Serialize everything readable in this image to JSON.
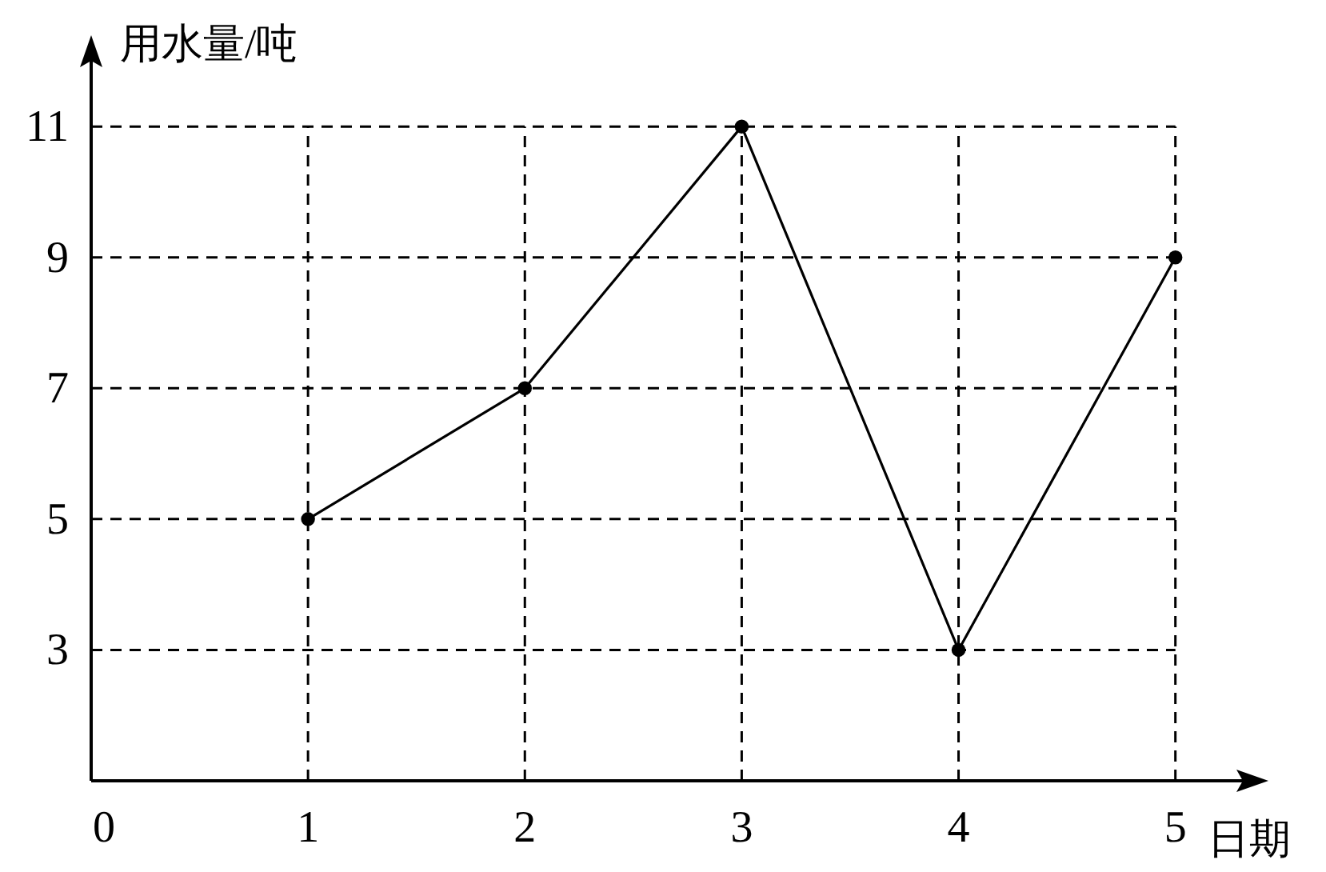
{
  "chart_data": {
    "type": "line",
    "xlabel": "日期",
    "ylabel": "用水量/吨",
    "x": [
      1,
      2,
      3,
      4,
      5
    ],
    "series": [
      {
        "color": "#000000",
        "values": [
          5,
          7,
          11,
          3,
          9
        ]
      }
    ],
    "xlim": [
      0,
      5.37
    ],
    "xticks": [
      0,
      1,
      2,
      3,
      4,
      5
    ],
    "ylim": [
      1,
      12.2
    ],
    "yticks": [
      3,
      5,
      7,
      9,
      11
    ],
    "grid": true,
    "marker": "circle",
    "line_style": "solid"
  }
}
